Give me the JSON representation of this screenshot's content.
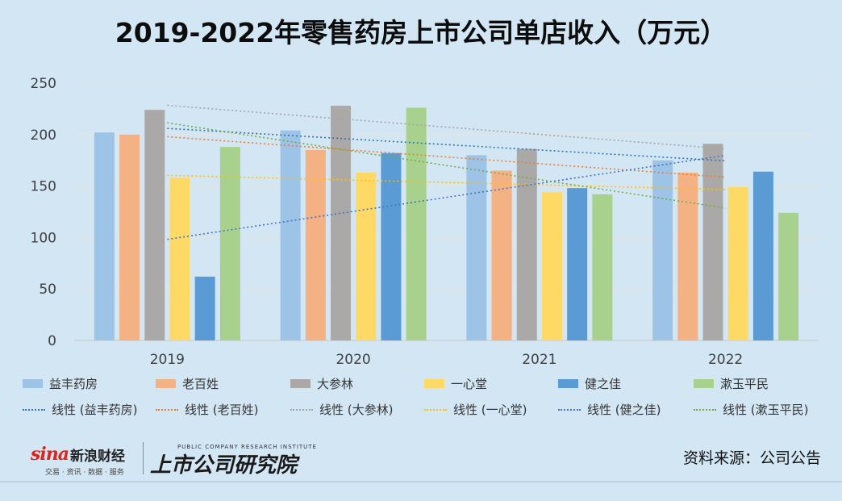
{
  "chart_data": {
    "type": "bar",
    "title": "2019-2022年零售药房上市公司单店收入（万元）",
    "categories": [
      "2019",
      "2020",
      "2021",
      "2022"
    ],
    "ylim": [
      0,
      250
    ],
    "yticks": [
      "0",
      "50",
      "100",
      "150",
      "200",
      "250"
    ],
    "grid": true,
    "legend_position": "bottom",
    "series": [
      {
        "name": "益丰药房",
        "color": "#9dc3e6",
        "values": [
          202,
          204,
          180,
          175
        ]
      },
      {
        "name": "老百姓",
        "color": "#f4b183",
        "values": [
          200,
          185,
          165,
          163
        ]
      },
      {
        "name": "大参林",
        "color": "#aba8a8",
        "values": [
          224,
          228,
          186,
          191
        ]
      },
      {
        "name": "一心堂",
        "color": "#ffd966",
        "values": [
          158,
          163,
          144,
          149
        ]
      },
      {
        "name": "健之佳",
        "color": "#5b9bd5",
        "values": [
          62,
          182,
          148,
          164
        ]
      },
      {
        "name": "漱玉平民",
        "color": "#a9d18e",
        "values": [
          188,
          226,
          142,
          124
        ]
      }
    ],
    "trendlines": [
      {
        "name": "线性 (益丰药房)",
        "color": "#2e75b6"
      },
      {
        "name": "线性 (老百姓)",
        "color": "#ed7d31"
      },
      {
        "name": "线性 (大参林)",
        "color": "#a5a5a5"
      },
      {
        "name": "线性 (一心堂)",
        "color": "#ffc000"
      },
      {
        "name": "线性 (健之佳)",
        "color": "#4472c4"
      },
      {
        "name": "线性 (漱玉平民)",
        "color": "#70ad47"
      }
    ]
  },
  "footer": {
    "sina_word": "sina",
    "sina_cn": "新浪财经",
    "sina_sub": "交易 · 资讯 · 数据 · 服务",
    "institute_en": "PUBLIC COMPANY RESEARCH INSTITUTE",
    "institute_cn": "上市公司研究院",
    "source": "资料来源：公司公告"
  }
}
